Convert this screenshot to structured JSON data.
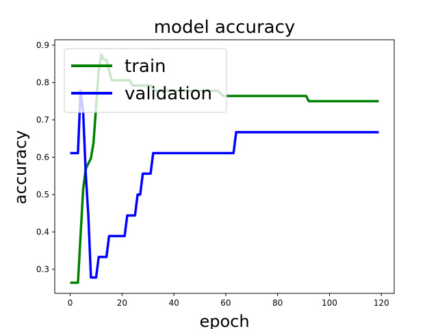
{
  "chart_data": {
    "type": "line",
    "title": "model accuracy",
    "xlabel": "epoch",
    "ylabel": "accuracy",
    "xlim": [
      -5.95,
      124.95
    ],
    "ylim": [
      0.2355,
      0.9145
    ],
    "xticks": [
      0,
      20,
      40,
      60,
      80,
      100,
      120
    ],
    "yticks": [
      0.3,
      0.4,
      0.5,
      0.6,
      0.7,
      0.8,
      0.9
    ],
    "ytick_labels": [
      "0.3",
      "0.4",
      "0.5",
      "0.6",
      "0.7",
      "0.8",
      "0.9"
    ],
    "grid": false,
    "legend_position": "upper left",
    "series": [
      {
        "name": "train",
        "color": "#008000",
        "points": [
          [
            0,
            0.264
          ],
          [
            3,
            0.264
          ],
          [
            5,
            0.514
          ],
          [
            6,
            0.569
          ],
          [
            8,
            0.597
          ],
          [
            9,
            0.639
          ],
          [
            11,
            0.833
          ],
          [
            12,
            0.875
          ],
          [
            13,
            0.861
          ],
          [
            14,
            0.861
          ],
          [
            15,
            0.833
          ],
          [
            16,
            0.806
          ],
          [
            23,
            0.806
          ],
          [
            24,
            0.792
          ],
          [
            31,
            0.792
          ],
          [
            33,
            0.778
          ],
          [
            57,
            0.778
          ],
          [
            59,
            0.764
          ],
          [
            91,
            0.764
          ],
          [
            92,
            0.75
          ],
          [
            119,
            0.75
          ]
        ]
      },
      {
        "name": "validation",
        "color": "#0000ff",
        "points": [
          [
            0,
            0.611
          ],
          [
            3,
            0.611
          ],
          [
            4,
            0.778
          ],
          [
            5,
            0.722
          ],
          [
            6,
            0.556
          ],
          [
            7,
            0.444
          ],
          [
            8,
            0.278
          ],
          [
            10,
            0.278
          ],
          [
            11,
            0.333
          ],
          [
            14,
            0.333
          ],
          [
            15,
            0.389
          ],
          [
            21,
            0.389
          ],
          [
            22,
            0.444
          ],
          [
            25,
            0.444
          ],
          [
            26,
            0.5
          ],
          [
            27,
            0.5
          ],
          [
            28,
            0.556
          ],
          [
            31,
            0.556
          ],
          [
            32,
            0.611
          ],
          [
            63,
            0.611
          ],
          [
            64,
            0.667
          ],
          [
            119,
            0.667
          ]
        ]
      }
    ]
  }
}
